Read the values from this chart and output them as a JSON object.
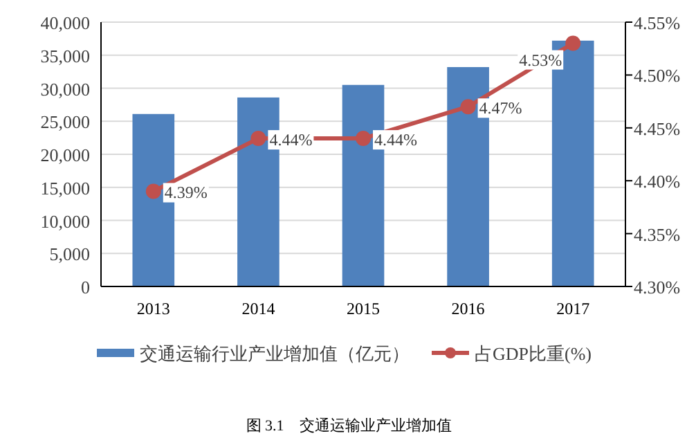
{
  "chart_data": {
    "type": "bar",
    "title": "图 3.1　交通运输业产业增加值",
    "categories": [
      "2013",
      "2014",
      "2015",
      "2016",
      "2017"
    ],
    "series": [
      {
        "name": "交通运输行业产业增加值（亿元）",
        "color": "#4f81bd",
        "values": [
          26100,
          28600,
          30500,
          33200,
          37200
        ]
      },
      {
        "name": "占GDP比重(%)",
        "type": "line",
        "axis": "y2",
        "color": "#c0504d",
        "marker": "circle",
        "values": [
          4.39,
          4.44,
          4.44,
          4.47,
          4.53
        ],
        "value_labels": [
          "4.39%",
          "4.44%",
          "4.44%",
          "4.47%",
          "4.53%"
        ]
      }
    ],
    "ylim": [
      0,
      40000
    ],
    "yticks": [
      {
        "value": 0,
        "label": "0"
      },
      {
        "value": 5000,
        "label": "5,000"
      },
      {
        "value": 10000,
        "label": "10,000"
      },
      {
        "value": 15000,
        "label": "15,000"
      },
      {
        "value": 20000,
        "label": "20,000"
      },
      {
        "value": 25000,
        "label": "25,000"
      },
      {
        "value": 30000,
        "label": "30,000"
      },
      {
        "value": 35000,
        "label": "35,000"
      },
      {
        "value": 40000,
        "label": "40,000"
      }
    ],
    "y2lim": [
      4.3,
      4.55
    ],
    "y2ticks": [
      {
        "value": 4.3,
        "label": "4.30%"
      },
      {
        "value": 4.35,
        "label": "4.35%"
      },
      {
        "value": 4.4,
        "label": "4.40%"
      },
      {
        "value": 4.45,
        "label": "4.45%"
      },
      {
        "value": 4.5,
        "label": "4.50%"
      },
      {
        "value": 4.55,
        "label": "4.55%"
      }
    ],
    "grid": "y",
    "legend": "bottom"
  }
}
